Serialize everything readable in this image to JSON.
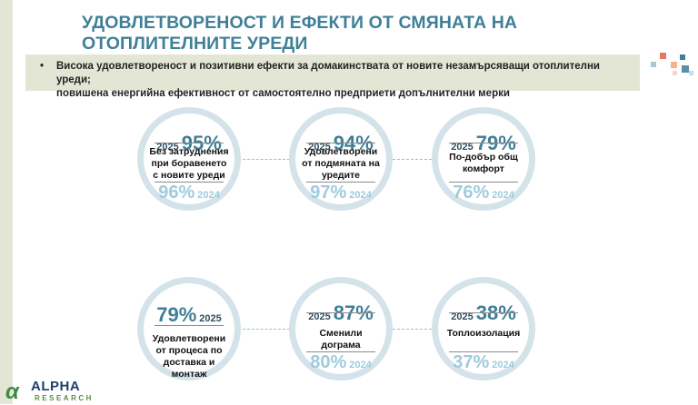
{
  "title": "УДОВЛЕТВОРЕНОСТ И ЕФЕКТИ ОТ СМЯНАТА НА ОТОПЛИТЕЛНИТЕ УРЕДИ",
  "banner": {
    "bullet": "•",
    "line1": "Висока удовлетвореност и позитивни ефекти за домакинствата от новите незамърсяващи отоплителни уреди;",
    "line2": "повишена енергийна ефективност от самостоятелно предприети допълнителни мерки"
  },
  "circles": [
    {
      "year_top": "2025",
      "value_top": "95%",
      "label": "Без затруднения при боравенето с новите уреди",
      "value_bottom": "96%",
      "year_bottom": "2024"
    },
    {
      "year_top": "2025",
      "value_top": "94%",
      "label": "Удовлетворени от подмяната на уредите",
      "value_bottom": "97%",
      "year_bottom": "2024"
    },
    {
      "year_top": "2025",
      "value_top": "79%",
      "label": "По-добър общ комфорт",
      "value_bottom": "76%",
      "year_bottom": "2024"
    },
    {
      "value_top": "79%",
      "year_top": "2025",
      "label": "Удовлетворени от процеса по доставка и монтаж"
    },
    {
      "year_top": "2025",
      "value_top": "87%",
      "label": "Сменили дограма",
      "value_bottom": "80%",
      "year_bottom": "2024"
    },
    {
      "year_top": "2025",
      "value_top": "38%",
      "label": "Топлоизолация",
      "value_bottom": "37%",
      "year_bottom": "2024"
    }
  ],
  "logo": {
    "mark": "α",
    "name": "ALPHA",
    "sub": "RESEARCH"
  },
  "colors": {
    "accent": "#3f7f97",
    "light": "#9fcbdd",
    "ring": "#d4e3ea",
    "banner": "#e3e6d5"
  }
}
